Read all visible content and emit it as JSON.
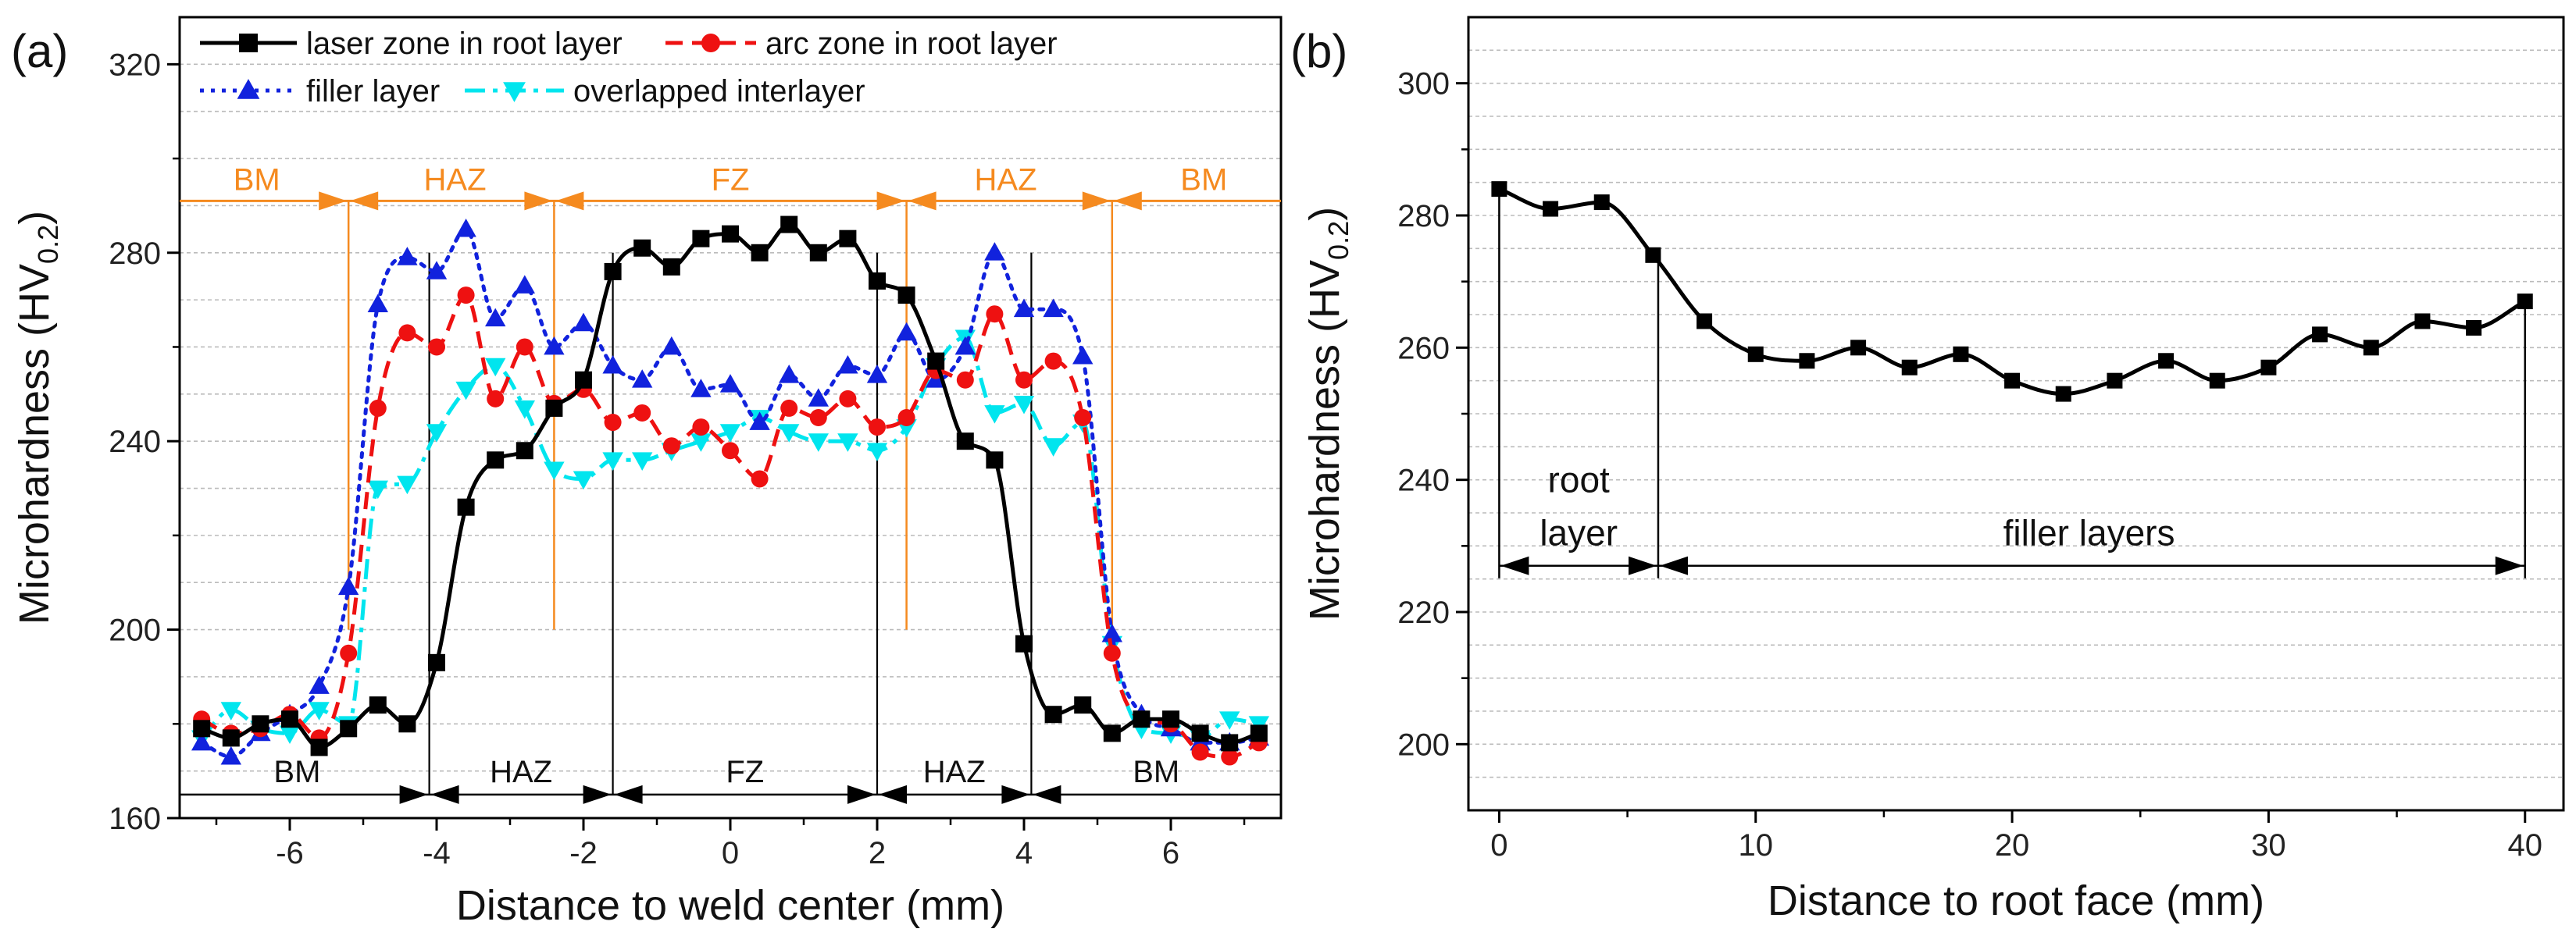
{
  "colors": {
    "laser": "#000000",
    "arc": "#EE1111",
    "filler": "#1122DD",
    "overlap": "#00E5EE",
    "zone_orange": "#F58A1F",
    "grid": "#BBBBBB"
  },
  "chart_data": [
    {
      "panel_label": "(a)",
      "type": "line",
      "xlabel": "Distance to weld center (mm)",
      "ylabel_main": "Microhardness (HV",
      "ylabel_sub": "0.2",
      "ylabel_close": ")",
      "xlim": [
        -7.5,
        7.5
      ],
      "ylim": [
        160,
        330
      ],
      "xticks": [
        -6,
        -4,
        -2,
        0,
        2,
        4,
        6
      ],
      "xtick_labels": [
        "-6",
        "-4",
        "-2",
        "0",
        "2",
        "4",
        "6"
      ],
      "yticks": [
        160,
        200,
        240,
        280,
        320
      ],
      "ytick_labels": [
        "160",
        "200",
        "240",
        "280",
        "320"
      ],
      "grid_y": [
        170,
        180,
        190,
        200,
        210,
        220,
        230,
        240,
        250,
        260,
        270,
        280,
        290,
        300,
        310,
        320
      ],
      "series": [
        {
          "name": "laser zone in root layer",
          "color_key": "laser",
          "dash": "solid",
          "marker": "square",
          "x": [
            -7.2,
            -6.8,
            -6.4,
            -6.0,
            -5.6,
            -5.2,
            -4.8,
            -4.4,
            -4.0,
            -3.6,
            -3.2,
            -2.8,
            -2.4,
            -2.0,
            -1.6,
            -1.2,
            -0.8,
            -0.4,
            0.0,
            0.4,
            0.8,
            1.2,
            1.6,
            2.0,
            2.4,
            2.8,
            3.2,
            3.6,
            4.0,
            4.4,
            4.8,
            5.2,
            5.6,
            6.0,
            6.4,
            6.8,
            7.2
          ],
          "y": [
            179,
            177,
            180,
            181,
            175,
            179,
            184,
            180,
            193,
            226,
            236,
            238,
            247,
            253,
            276,
            281,
            277,
            283,
            284,
            280,
            286,
            280,
            283,
            274,
            271,
            257,
            240,
            236,
            197,
            182,
            184,
            178,
            181,
            181,
            178,
            176,
            178
          ]
        },
        {
          "name": "arc zone in root layer",
          "color_key": "arc",
          "dash": "dash",
          "marker": "circle",
          "x": [
            -7.2,
            -6.8,
            -6.4,
            -6.0,
            -5.6,
            -5.2,
            -4.8,
            -4.4,
            -4.0,
            -3.6,
            -3.2,
            -2.8,
            -2.4,
            -2.0,
            -1.6,
            -1.2,
            -0.8,
            -0.4,
            0.0,
            0.4,
            0.8,
            1.2,
            1.6,
            2.0,
            2.4,
            2.8,
            3.2,
            3.6,
            4.0,
            4.4,
            4.8,
            5.2,
            5.6,
            6.0,
            6.4,
            6.8,
            7.2
          ],
          "y": [
            181,
            178,
            179,
            182,
            177,
            195,
            247,
            263,
            260,
            271,
            249,
            260,
            248,
            251,
            244,
            246,
            239,
            243,
            238,
            232,
            247,
            245,
            249,
            243,
            245,
            255,
            253,
            267,
            253,
            257,
            245,
            195,
            181,
            180,
            174,
            173,
            176
          ]
        },
        {
          "name": "filler layer",
          "color_key": "filler",
          "dash": "dot",
          "marker": "triangle-up",
          "x": [
            -7.2,
            -6.8,
            -6.4,
            -6.0,
            -5.6,
            -5.2,
            -4.8,
            -4.4,
            -4.0,
            -3.6,
            -3.2,
            -2.8,
            -2.4,
            -2.0,
            -1.6,
            -1.2,
            -0.8,
            -0.4,
            0.0,
            0.4,
            0.8,
            1.2,
            1.6,
            2.0,
            2.4,
            2.8,
            3.2,
            3.6,
            4.0,
            4.4,
            4.8,
            5.2,
            5.6,
            6.0,
            6.4,
            6.8,
            7.2
          ],
          "y": [
            176,
            173,
            178,
            182,
            188,
            209,
            269,
            279,
            276,
            285,
            266,
            273,
            260,
            265,
            256,
            253,
            260,
            251,
            252,
            244,
            254,
            249,
            256,
            254,
            263,
            253,
            260,
            280,
            268,
            268,
            258,
            199,
            182,
            179,
            176,
            176,
            177
          ]
        },
        {
          "name": "overlapped interlayer",
          "color_key": "overlap",
          "dash": "dashdot",
          "marker": "triangle-down",
          "x": [
            -7.2,
            -6.8,
            -6.4,
            -6.0,
            -5.6,
            -5.2,
            -4.8,
            -4.4,
            -4.0,
            -3.6,
            -3.2,
            -2.8,
            -2.4,
            -2.0,
            -1.6,
            -1.2,
            -0.8,
            -0.4,
            0.0,
            0.4,
            0.8,
            1.2,
            1.6,
            2.0,
            2.4,
            2.8,
            3.2,
            3.6,
            4.0,
            4.4,
            4.8,
            5.2,
            5.6,
            6.0,
            6.4,
            6.8,
            7.2
          ],
          "y": [
            177,
            183,
            179,
            178,
            183,
            180,
            230,
            231,
            242,
            251,
            256,
            247,
            234,
            232,
            236,
            236,
            238,
            240,
            242,
            245,
            242,
            240,
            240,
            238,
            243,
            256,
            262,
            246,
            248,
            239,
            244,
            197,
            179,
            178,
            177,
            181,
            180
          ]
        }
      ],
      "legend": [
        "laser zone in root layer",
        "arc zone in root layer",
        "filler layer",
        "overlapped interlayer"
      ],
      "top_zones": {
        "labels": [
          "BM",
          "HAZ",
          "FZ",
          "HAZ",
          "BM"
        ],
        "boundaries_x": [
          -5.2,
          -2.4,
          2.4,
          5.2
        ],
        "label_x": [
          -6.45,
          -3.75,
          0.0,
          3.75,
          6.45
        ],
        "line_y": 291
      },
      "bottom_zones": {
        "labels": [
          "BM",
          "HAZ",
          "FZ",
          "HAZ",
          "BM"
        ],
        "boundaries_x": [
          -4.1,
          -1.6,
          2.0,
          4.1
        ],
        "label_x": [
          -5.9,
          -2.85,
          0.2,
          3.05,
          5.8
        ],
        "line_y": 165
      }
    },
    {
      "panel_label": "(b)",
      "type": "line",
      "xlabel": "Distance to root face (mm)",
      "ylabel_main": "Microhardness (HV",
      "ylabel_sub": "0.2",
      "ylabel_close": ")",
      "xlim": [
        -1.2,
        41.5
      ],
      "ylim": [
        190,
        310
      ],
      "xticks": [
        0,
        10,
        20,
        30,
        40
      ],
      "xtick_labels": [
        "0",
        "10",
        "20",
        "30",
        "40"
      ],
      "yticks": [
        200,
        220,
        240,
        260,
        280,
        300
      ],
      "ytick_labels": [
        "200",
        "220",
        "240",
        "260",
        "280",
        "300"
      ],
      "grid_y": [
        195,
        200,
        205,
        210,
        215,
        220,
        225,
        230,
        235,
        240,
        245,
        250,
        255,
        260,
        265,
        270,
        275,
        280,
        285,
        290,
        295,
        300,
        305
      ],
      "series": [
        {
          "name": "microhardness",
          "color_key": "laser",
          "dash": "solid",
          "marker": "square",
          "x": [
            0,
            2,
            4,
            6,
            8,
            10,
            12,
            14,
            16,
            18,
            20,
            22,
            24,
            26,
            28,
            30,
            32,
            34,
            36,
            38,
            40
          ],
          "y": [
            284,
            281,
            282,
            274,
            264,
            259,
            258,
            260,
            257,
            259,
            255,
            253,
            255,
            258,
            255,
            257,
            262,
            260,
            264,
            263,
            267
          ]
        }
      ],
      "annotations": {
        "root_label_line1": "root",
        "root_label_line2": "layer",
        "filler_label": "filler layers",
        "boundaries_x": [
          0,
          6.2,
          40
        ],
        "arrow_y": 227,
        "root_label_x": 3.1,
        "filler_label_x": 23
      }
    }
  ]
}
